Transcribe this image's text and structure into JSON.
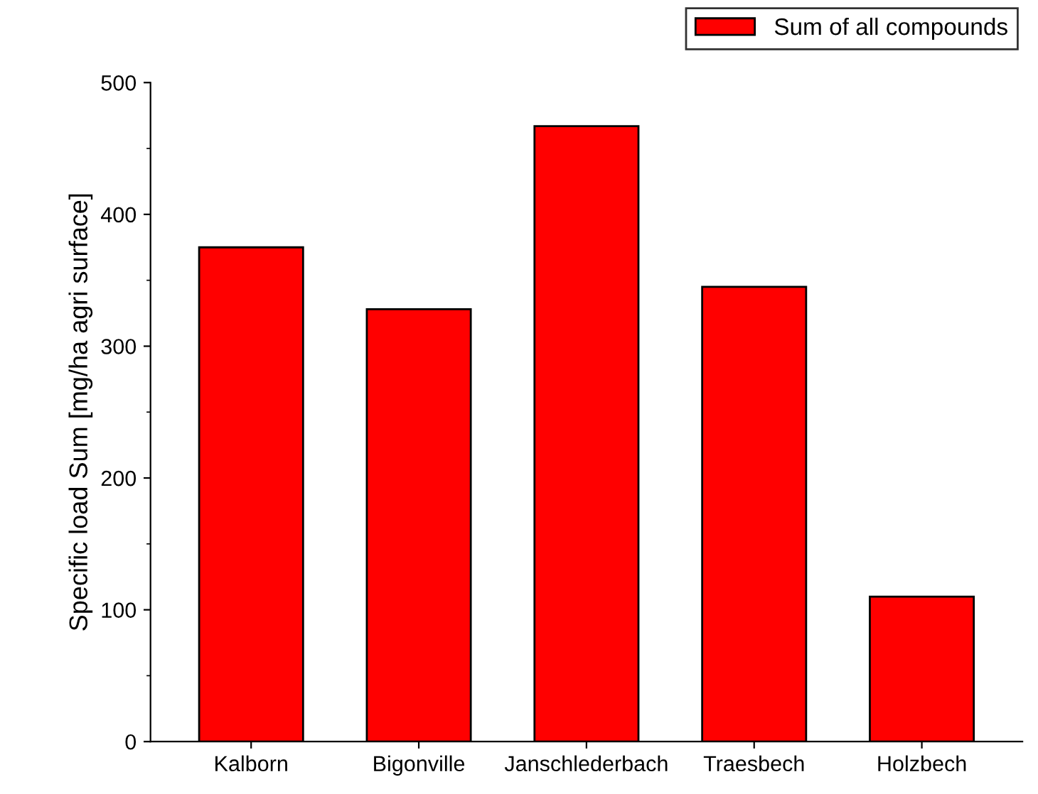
{
  "chart_data": {
    "type": "bar",
    "ylabel": "Specific load Sum [mg/ha agri surface]",
    "categories": [
      "Kalborn",
      "Bigonville",
      "Janschlederbach",
      "Traesbech",
      "Holzbech"
    ],
    "series": [
      {
        "name": "Sum of all compounds",
        "color": "#ff0000",
        "values": [
          375,
          328,
          467,
          345,
          110
        ]
      }
    ],
    "ylim": [
      0,
      500
    ],
    "yticks": [
      0,
      100,
      200,
      300,
      400,
      500
    ],
    "grid": false,
    "legend": "top right"
  }
}
